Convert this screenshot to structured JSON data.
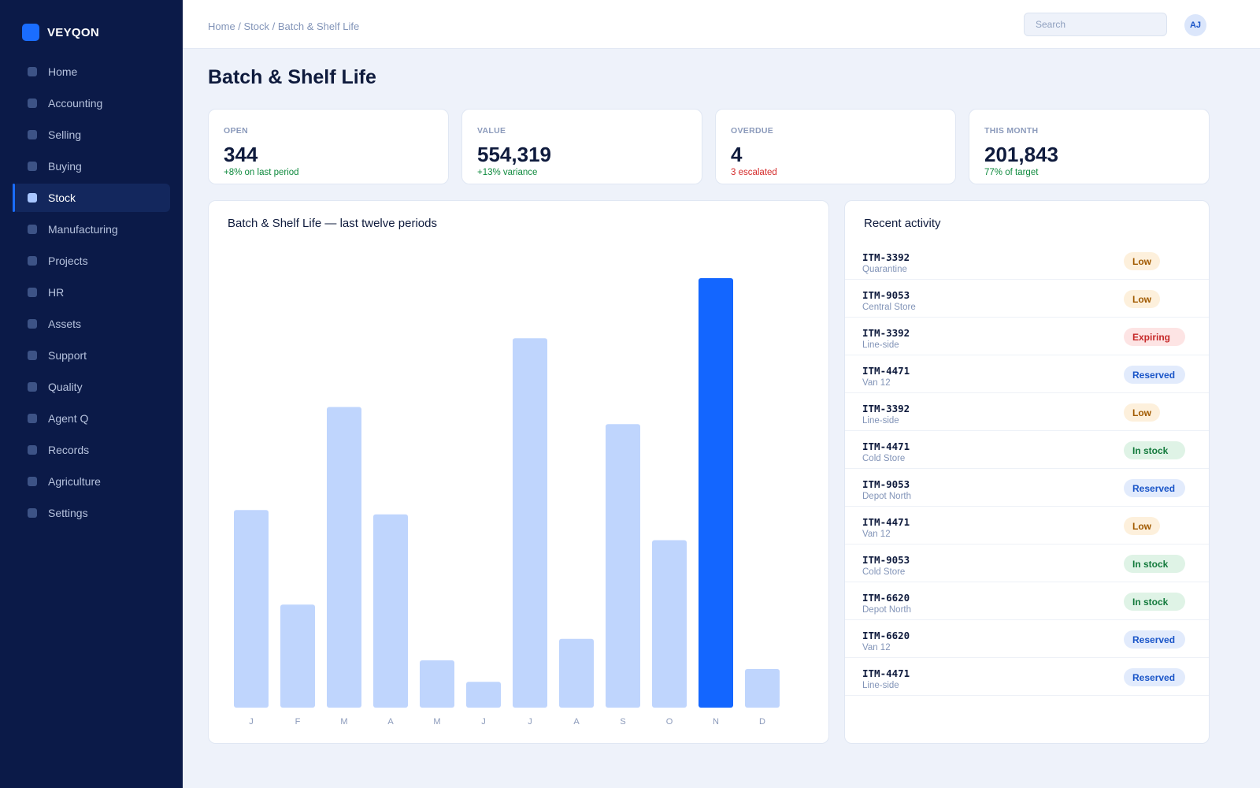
{
  "app": {
    "name": "VEYQON"
  },
  "sidebar": {
    "items": [
      {
        "label": "Home",
        "active": false
      },
      {
        "label": "Accounting",
        "active": false
      },
      {
        "label": "Selling",
        "active": false
      },
      {
        "label": "Buying",
        "active": false
      },
      {
        "label": "Stock",
        "active": true
      },
      {
        "label": "Manufacturing",
        "active": false
      },
      {
        "label": "Projects",
        "active": false
      },
      {
        "label": "HR",
        "active": false
      },
      {
        "label": "Assets",
        "active": false
      },
      {
        "label": "Support",
        "active": false
      },
      {
        "label": "Quality",
        "active": false
      },
      {
        "label": "Agent Q",
        "active": false
      },
      {
        "label": "Records",
        "active": false
      },
      {
        "label": "Agriculture",
        "active": false
      },
      {
        "label": "Settings",
        "active": false
      }
    ]
  },
  "topbar": {
    "breadcrumb": "Home / Stock / Batch & Shelf Life",
    "search_placeholder": "Search",
    "search_value": "",
    "avatar_initials": "AJ"
  },
  "page": {
    "title": "Batch & Shelf Life"
  },
  "kpis": [
    {
      "label": "OPEN",
      "value": "344",
      "note": "+8% on last period",
      "tone": "good"
    },
    {
      "label": "VALUE",
      "value": "554,319",
      "note": "+13% variance",
      "tone": "good"
    },
    {
      "label": "OVERDUE",
      "value": "4",
      "note": "3 escalated",
      "tone": "bad"
    },
    {
      "label": "THIS MONTH",
      "value": "201,843",
      "note": "77% of target",
      "tone": "good"
    }
  ],
  "chart_data": {
    "type": "bar",
    "title": "Batch & Shelf Life — last twelve periods",
    "categories": [
      "J",
      "F",
      "M",
      "A",
      "M",
      "J",
      "J",
      "A",
      "S",
      "O",
      "N",
      "D"
    ],
    "values": [
      46,
      24,
      70,
      45,
      11,
      6,
      86,
      16,
      66,
      39,
      100,
      9
    ],
    "highlight_index": 10,
    "colors": {
      "bar": "#bfd5fd",
      "highlight": "#1366ff",
      "tick": "#8b9abb"
    },
    "grid": false
  },
  "activity": {
    "title": "Recent activity",
    "rows": [
      {
        "id": "ITM-3392",
        "location": "Quarantine",
        "status": "Low"
      },
      {
        "id": "ITM-9053",
        "location": "Central Store",
        "status": "Low"
      },
      {
        "id": "ITM-3392",
        "location": "Line-side",
        "status": "Expiring"
      },
      {
        "id": "ITM-4471",
        "location": "Van 12",
        "status": "Reserved"
      },
      {
        "id": "ITM-3392",
        "location": "Line-side",
        "status": "Low"
      },
      {
        "id": "ITM-4471",
        "location": "Cold Store",
        "status": "In stock"
      },
      {
        "id": "ITM-9053",
        "location": "Depot North",
        "status": "Reserved"
      },
      {
        "id": "ITM-4471",
        "location": "Van 12",
        "status": "Low"
      },
      {
        "id": "ITM-9053",
        "location": "Cold Store",
        "status": "In stock"
      },
      {
        "id": "ITM-6620",
        "location": "Depot North",
        "status": "In stock"
      },
      {
        "id": "ITM-6620",
        "location": "Van 12",
        "status": "Reserved"
      },
      {
        "id": "ITM-4471",
        "location": "Line-side",
        "status": "Reserved"
      }
    ]
  }
}
